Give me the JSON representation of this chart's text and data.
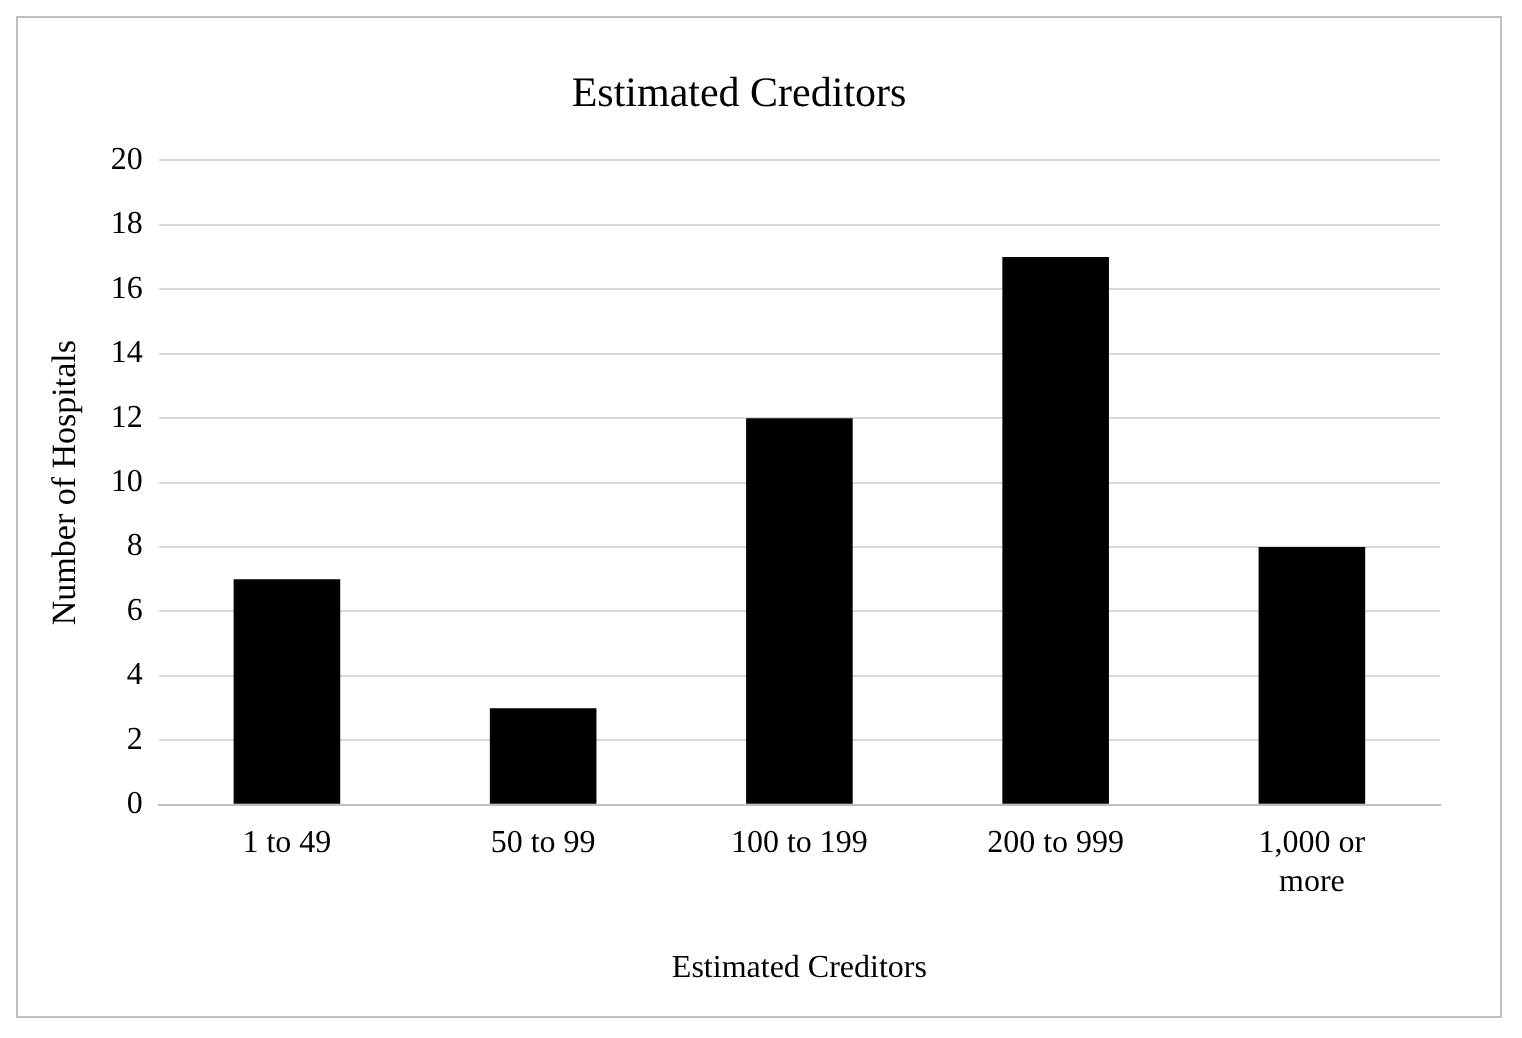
{
  "chart_data": {
    "type": "bar",
    "title": "Estimated Creditors",
    "xlabel": "Estimated Creditors",
    "ylabel": "Number of Hospitals",
    "categories": [
      "1 to 49",
      "50 to 99",
      "100 to 199",
      "200 to 999",
      "1,000 or more"
    ],
    "values": [
      7,
      3,
      12,
      17,
      8
    ],
    "color": "#000000",
    "ylim": [
      0,
      20
    ],
    "yticks": [
      0,
      2,
      4,
      6,
      8,
      10,
      12,
      14,
      16,
      18,
      20
    ],
    "grid": "y",
    "legend": false
  }
}
